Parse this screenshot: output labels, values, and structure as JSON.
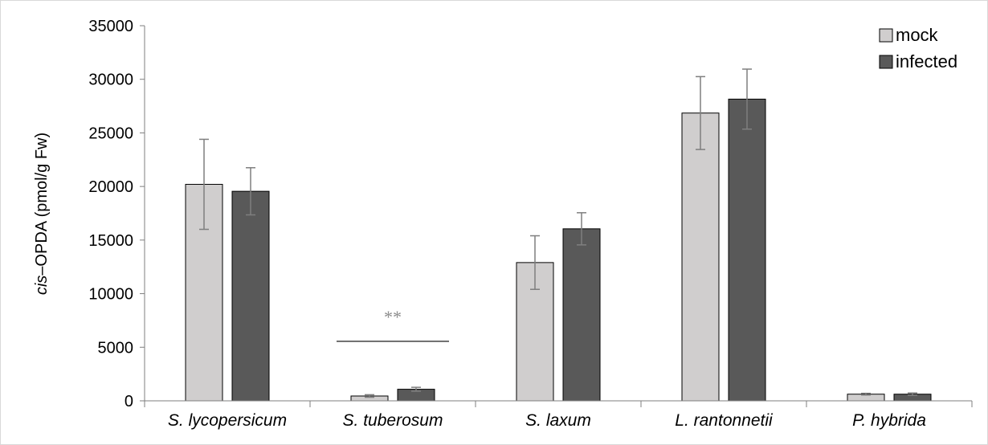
{
  "chart_data": {
    "type": "bar",
    "categories": [
      "S. lycopersicum",
      "S. tuberosum",
      "S. laxum",
      "L. rantonnetii",
      "P. hybrida"
    ],
    "series": [
      {
        "name": "mock",
        "color": "#d0cece",
        "values": [
          20200,
          450,
          12900,
          26850,
          620
        ],
        "errors": [
          4200,
          120,
          2500,
          3400,
          80
        ]
      },
      {
        "name": "infected",
        "color": "#595959",
        "values": [
          19550,
          1080,
          16050,
          28150,
          620
        ],
        "errors": [
          2200,
          180,
          1500,
          2800,
          110
        ]
      }
    ],
    "ylabel_prefix": "cis",
    "ylabel_rest": "–OPDA (pmol/g Fw)",
    "xlabel": "",
    "ylim": [
      0,
      35000
    ],
    "yticks": [
      0,
      5000,
      10000,
      15000,
      20000,
      25000,
      30000,
      35000
    ],
    "legend_position": "top-right",
    "grid": false,
    "annotations": [
      {
        "text": "**",
        "category": "S. tuberosum",
        "y": 5550
      }
    ]
  }
}
